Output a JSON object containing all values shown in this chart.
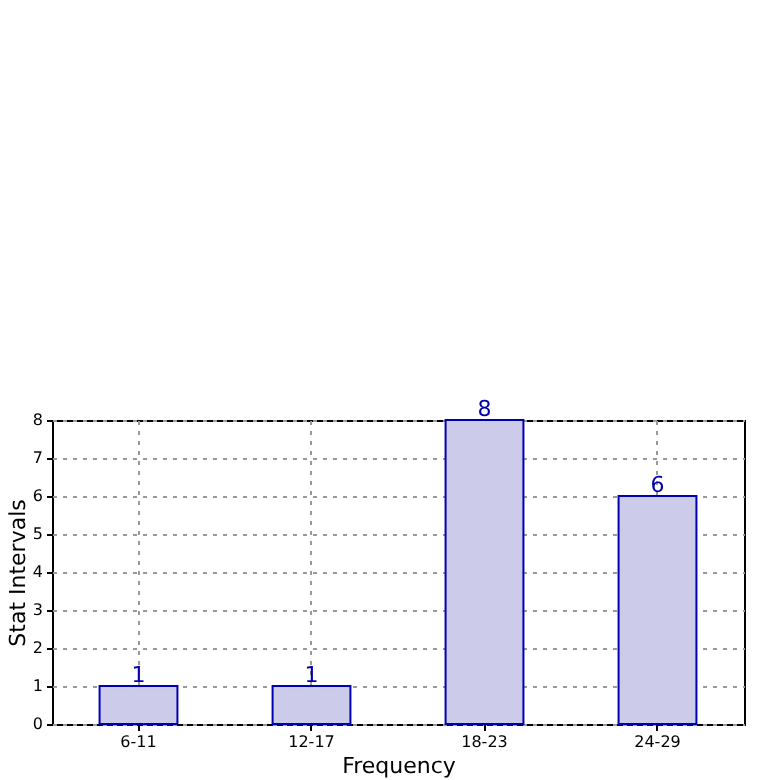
{
  "chart_data": {
    "type": "bar",
    "xlabel": "Frequency",
    "ylabel": "Stat Intervals",
    "categories": [
      "6-11",
      "12-17",
      "18-23",
      "24-29"
    ],
    "values": [
      1,
      1,
      8,
      6
    ],
    "color": "#ccccea",
    "ylim": [
      0,
      8
    ],
    "yticks": [
      0,
      1,
      2,
      3,
      4,
      5,
      6,
      7,
      8
    ],
    "grid": true,
    "data_labels": true
  }
}
